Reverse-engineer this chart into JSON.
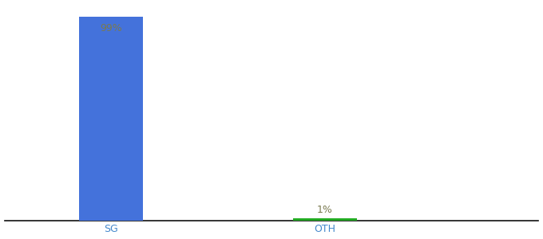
{
  "categories": [
    "SG",
    "OTH"
  ],
  "values": [
    99,
    1
  ],
  "bar_colors": [
    "#4472db",
    "#22aa22"
  ],
  "labels": [
    "99%",
    "1%"
  ],
  "label_color_inside": "#7a7a50",
  "label_color_outside": "#7a7a50",
  "background_color": "#ffffff",
  "ylim": [
    0,
    105
  ],
  "bar_width": 0.6,
  "x_positions": [
    1,
    3
  ],
  "xlim": [
    0,
    5
  ],
  "tick_fontsize": 9,
  "label_fontsize": 9,
  "axis_line_color": "#111111"
}
